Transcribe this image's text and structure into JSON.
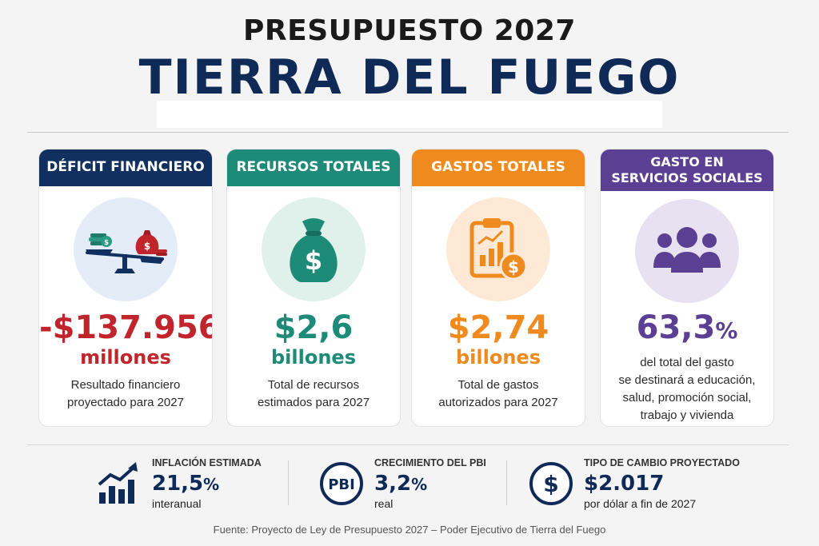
{
  "header": {
    "title_line1": "PRESUPUESTO 2027",
    "title_line2": "TIERRA DEL FUEGO"
  },
  "cards": [
    {
      "title": "DÉFICIT FINANCIERO",
      "value": "-$137.956",
      "unit": "millones",
      "desc_line1": "Resultado financiero",
      "desc_line2": "proyectado para 2027",
      "icon": "balance-scale-icon",
      "color": "#12305f",
      "value_color": "#c0252b",
      "circle_color": "#e4ecf8"
    },
    {
      "title": "RECURSOS TOTALES",
      "value": "$2,6",
      "unit": "billones",
      "desc_line1": "Total de recursos",
      "desc_line2": "estimados para 2027",
      "icon": "money-bag-icon",
      "color": "#1e8a78",
      "value_color": "#1e8a78",
      "circle_color": "#dff1ea"
    },
    {
      "title": "GASTOS TOTALES",
      "value": "$2,74",
      "unit": "billones",
      "desc_line1": "Total de gastos",
      "desc_line2": "autorizados para 2027",
      "icon": "clipboard-chart-icon",
      "color": "#ee8a1e",
      "value_color": "#ee8a1e",
      "circle_color": "#fde9d6"
    },
    {
      "title_line1": "GASTO EN",
      "title_line2": "SERVICIOS SOCIALES",
      "value": "63,3",
      "value_suffix": "%",
      "desc_line1": "del total del gasto",
      "desc_line2": "se destinará a educación,",
      "desc_line3": "salud, promoción social,",
      "desc_line4": "trabajo y vivienda",
      "icon": "people-group-icon",
      "color": "#5b3f92",
      "value_color": "#5b3f92",
      "circle_color": "#e7e1f1"
    }
  ],
  "stats": [
    {
      "label": "INFLACIÓN ESTIMADA",
      "value": "21,5",
      "suffix": "%",
      "sub": "interanual",
      "icon": "trend-up-chart-icon"
    },
    {
      "label": "CRECIMIENTO DEL PBI",
      "value": "3,2",
      "suffix": "%",
      "sub": "real",
      "icon": "pbi-badge-icon",
      "icon_text": "PBI"
    },
    {
      "label": "TIPO DE CAMBIO PROYECTADO",
      "value": "$2.017",
      "sub": "por dólar a fin de 2027",
      "icon": "dollar-circle-icon"
    }
  ],
  "footer": {
    "source": "Fuente: Proyecto de Ley de Presupuesto 2027 – Poder Ejecutivo de Tierra del Fuego"
  }
}
